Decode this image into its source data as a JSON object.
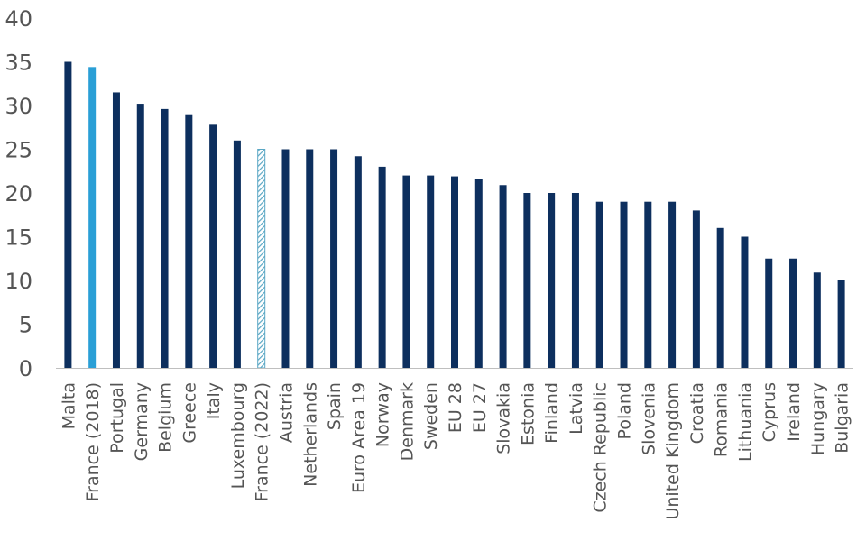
{
  "chart_data": {
    "type": "bar",
    "title": "",
    "xlabel": "",
    "ylabel": "",
    "ylim": [
      0,
      40
    ],
    "yticks": [
      0,
      5,
      10,
      15,
      20,
      25,
      30,
      35,
      40
    ],
    "grid": false,
    "categories": [
      "Malta",
      "France (2018)",
      "Portugal",
      "Germany",
      "Belgium",
      "Greece",
      "Italy",
      "Luxembourg",
      "France (2022)",
      "Austria",
      "Netherlands",
      "Spain",
      "Euro Area 19",
      "Norway",
      "Denmark",
      "Sweden",
      "EU 28",
      "EU 27",
      "Slovakia",
      "Estonia",
      "Finland",
      "Latvia",
      "Czech Republic",
      "Poland",
      "Slovenia",
      "United Kingdom",
      "Croatia",
      "Romania",
      "Lithuania",
      "Cyprus",
      "Ireland",
      "Hungary",
      "Bulgaria"
    ],
    "values": [
      35,
      34.4,
      31.5,
      30.2,
      29.6,
      29,
      27.8,
      26,
      25,
      25,
      25,
      25,
      24.2,
      23,
      22,
      22,
      21.9,
      21.6,
      20.9,
      20,
      20,
      20,
      19,
      19,
      19,
      19,
      18,
      16,
      15,
      12.5,
      12.5,
      10.9,
      10
    ],
    "colors": {
      "default": "#0d2f5e",
      "highlight": "#2a9fd6",
      "hatched": "#5aa7c4",
      "axis": "#bfbfbf",
      "text": "#555555"
    },
    "bar_styles": [
      "default",
      "highlight",
      "default",
      "default",
      "default",
      "default",
      "default",
      "default",
      "hatched",
      "default",
      "default",
      "default",
      "default",
      "default",
      "default",
      "default",
      "default",
      "default",
      "default",
      "default",
      "default",
      "default",
      "default",
      "default",
      "default",
      "default",
      "default",
      "default",
      "default",
      "default",
      "default",
      "default",
      "default"
    ]
  }
}
